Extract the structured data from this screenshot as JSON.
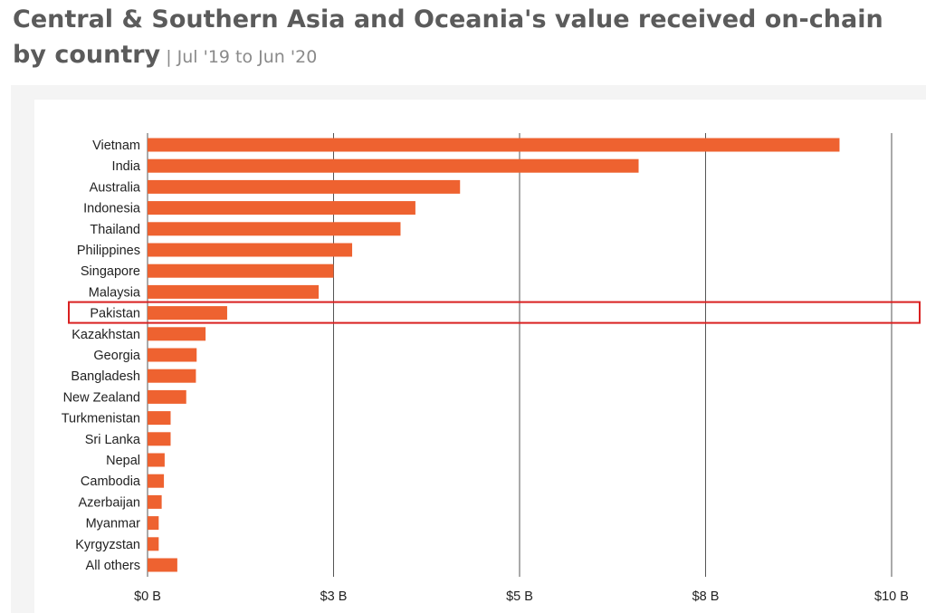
{
  "title": {
    "main": "Central & Southern Asia and Oceania's value received on-chain by country",
    "subtitle": "Jul '19 to Jun '20"
  },
  "colors": {
    "bar": "#ee6230",
    "grid": "#555555",
    "highlight": "#d92020",
    "panel": "#f4f4f4"
  },
  "highlight_category": "Pakistan",
  "chart_data": {
    "type": "bar",
    "orientation": "horizontal",
    "categories": [
      "Vietnam",
      "India",
      "Australia",
      "Indonesia",
      "Thailand",
      "Philippines",
      "Singapore",
      "Malaysia",
      "Pakistan",
      "Kazakhstan",
      "Georgia",
      "Bangladesh",
      "New Zealand",
      "Turkmenistan",
      "Sri Lanka",
      "Nepal",
      "Cambodia",
      "Azerbaijan",
      "Myanmar",
      "Kyrgyzstan",
      "All others"
    ],
    "values": [
      9.3,
      6.6,
      4.2,
      3.6,
      3.4,
      2.75,
      2.5,
      2.3,
      1.07,
      0.78,
      0.66,
      0.65,
      0.52,
      0.31,
      0.31,
      0.23,
      0.22,
      0.19,
      0.15,
      0.15,
      0.4
    ],
    "unit": "B (USD)",
    "xlim": [
      0,
      10
    ],
    "ticks": [
      0,
      2.5,
      5,
      7.5,
      10
    ],
    "tick_labels": [
      "$0 B",
      "$3 B",
      "$5 B",
      "$8 B",
      "$10 B"
    ],
    "grid": "vertical",
    "xlabel": "",
    "ylabel": ""
  }
}
